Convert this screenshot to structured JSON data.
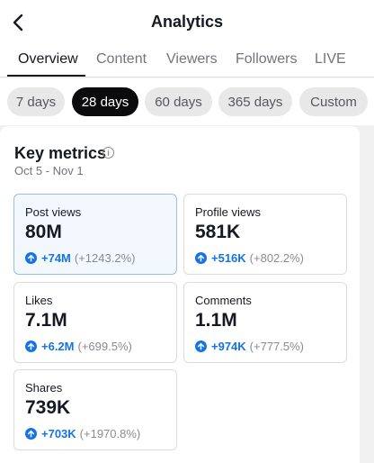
{
  "header": {
    "title": "Analytics",
    "back_icon": "chevron-left-icon"
  },
  "tabs": [
    {
      "label": "Overview",
      "active": true
    },
    {
      "label": "Content",
      "active": false
    },
    {
      "label": "Viewers",
      "active": false
    },
    {
      "label": "Followers",
      "active": false
    },
    {
      "label": "LIVE",
      "active": false
    }
  ],
  "ranges": [
    {
      "label": "7 days",
      "active": false
    },
    {
      "label": "28 days",
      "active": true
    },
    {
      "label": "60 days",
      "active": false
    },
    {
      "label": "365 days",
      "active": false
    },
    {
      "label": "Custom",
      "active": false
    }
  ],
  "key_metrics": {
    "title": "Key metrics",
    "date_range": "Oct 5 - Nov 1",
    "items": [
      {
        "label": "Post views",
        "value": "80M",
        "change": "+74M",
        "pct": "(+1243.2%)",
        "selected": true
      },
      {
        "label": "Profile views",
        "value": "581K",
        "change": "+516K",
        "pct": "(+802.2%)",
        "selected": false
      },
      {
        "label": "Likes",
        "value": "7.1M",
        "change": "+6.2M",
        "pct": "(+699.5%)",
        "selected": false
      },
      {
        "label": "Comments",
        "value": "1.1M",
        "change": "+974K",
        "pct": "(+777.5%)",
        "selected": false
      },
      {
        "label": "Shares",
        "value": "739K",
        "change": "+703K",
        "pct": "(+1970.8%)",
        "selected": false
      }
    ]
  },
  "colors": {
    "accent": "#1473e6",
    "selected_border": "#97bfee",
    "active_chip": "#0b0b0d"
  }
}
